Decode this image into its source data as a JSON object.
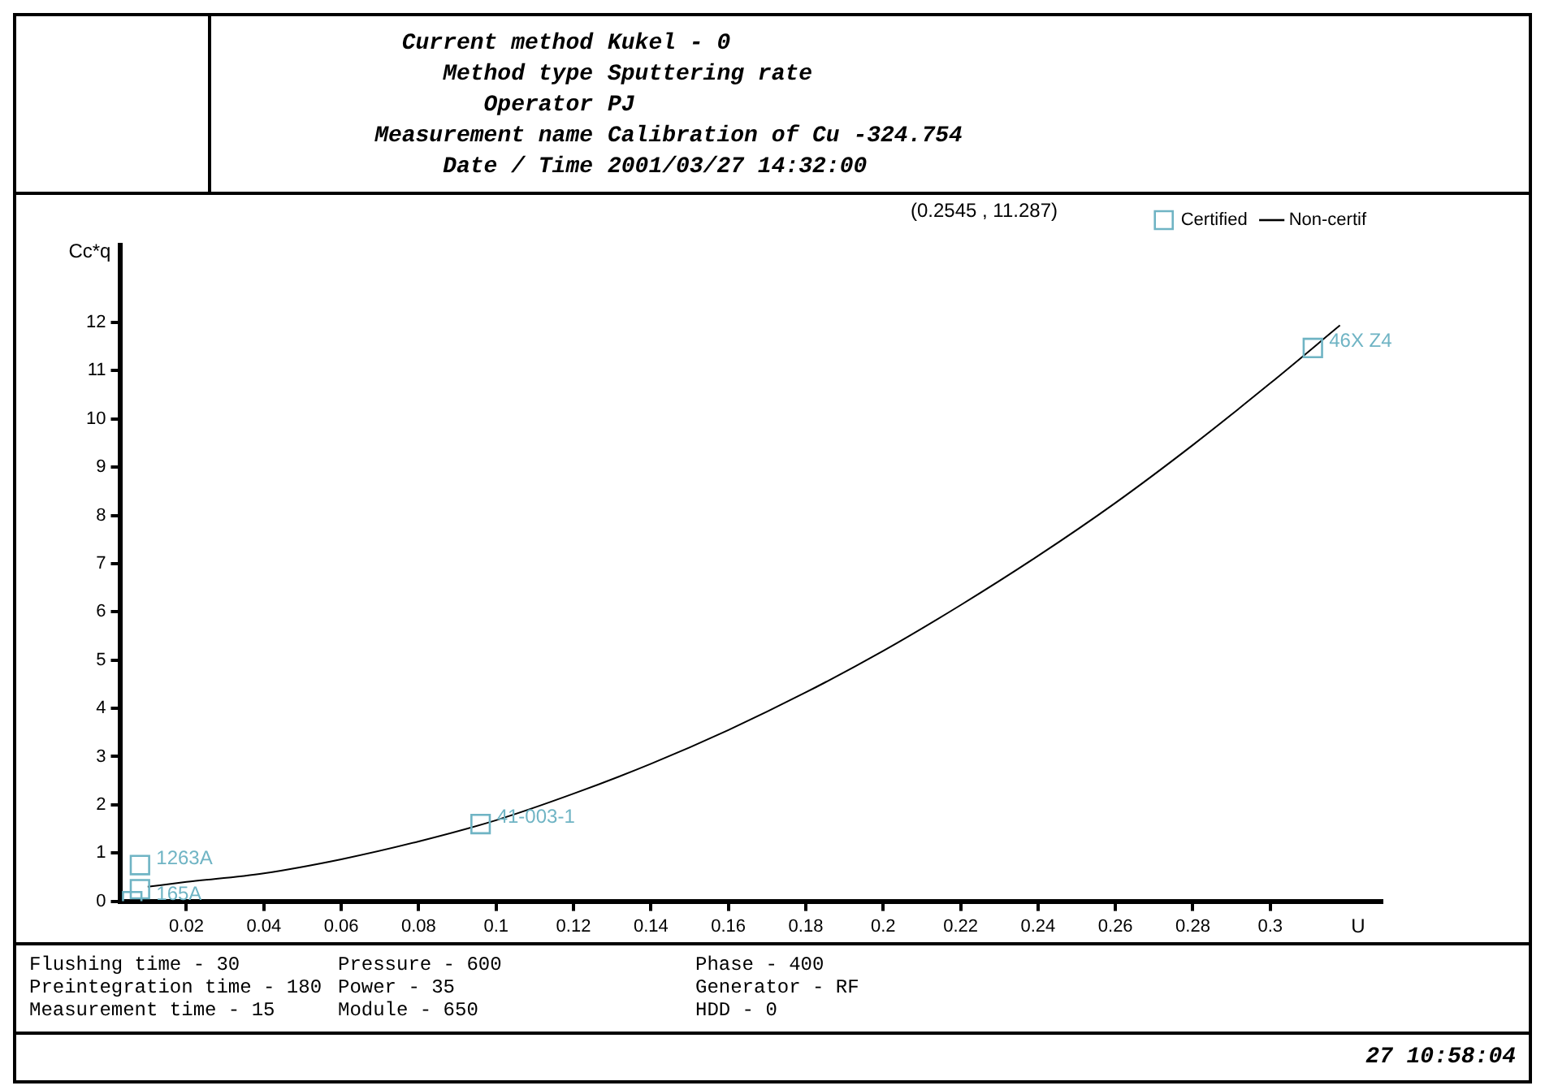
{
  "chart_data": {
    "type": "line",
    "xlabel": "U",
    "ylabel": "Cc*q",
    "annotations": [
      "Current method",
      "Kukel - 0",
      "Method type",
      "Sputtering rate",
      "Operator",
      "PJ",
      "Measurement name",
      "Calibration of Cu -324.754",
      "Date / Time",
      "2001/03/27 14:32:00",
      "Flushing time - 30",
      "Preintegration time - 180",
      "Measurement time - 15",
      "Pressure - 600",
      "Power - 35",
      "Module - 650",
      "Phase - 400",
      "Generator - RF",
      "HDD - 0",
      "27 10:58:04",
      "(0.2545 , 11.287)",
      {
        "text": "1263A",
        "x": 0.008,
        "y": 0.75
      },
      {
        "text": "165A",
        "x": 0.008,
        "y": 0.0
      },
      {
        "text": "41-003-1",
        "x": 0.096,
        "y": 1.6
      },
      {
        "text": "46X Z4",
        "x": 0.311,
        "y": 11.47
      }
    ],
    "xlim": [
      0.003,
      0.329
    ],
    "ylim": [
      0,
      13.6
    ],
    "xticks": [
      0.02,
      0.04,
      0.06,
      0.08,
      0.1,
      0.12,
      0.14,
      0.16,
      0.18,
      0.2,
      0.22,
      0.24,
      0.26,
      0.28,
      0.3
    ],
    "yticks": [
      0,
      1,
      2,
      3,
      4,
      5,
      6,
      7,
      8,
      9,
      10,
      11,
      12
    ],
    "legend": "top right",
    "series": [
      {
        "name": "Certified",
        "type": "scatter",
        "color": "#6fb4c4",
        "marker": "square",
        "x": [
          0.006,
          0.008,
          0.008,
          0.096,
          0.311
        ],
        "values": [
          0.0,
          0.25,
          0.75,
          1.6,
          11.47
        ]
      },
      {
        "name": "Non-certif",
        "color": "#000000",
        "marker": "none",
        "line_style": "solid",
        "x": [
          0.01,
          0.02,
          0.04,
          0.06,
          0.08,
          0.1,
          0.12,
          0.14,
          0.16,
          0.18,
          0.2,
          0.22,
          0.24,
          0.26,
          0.28,
          0.3,
          0.318
        ],
        "values": [
          0.3,
          0.4,
          0.58,
          0.87,
          1.24,
          1.68,
          2.23,
          2.85,
          3.55,
          4.33,
          5.19,
          6.14,
          7.16,
          8.26,
          9.46,
          10.74,
          11.94
        ]
      }
    ]
  }
}
